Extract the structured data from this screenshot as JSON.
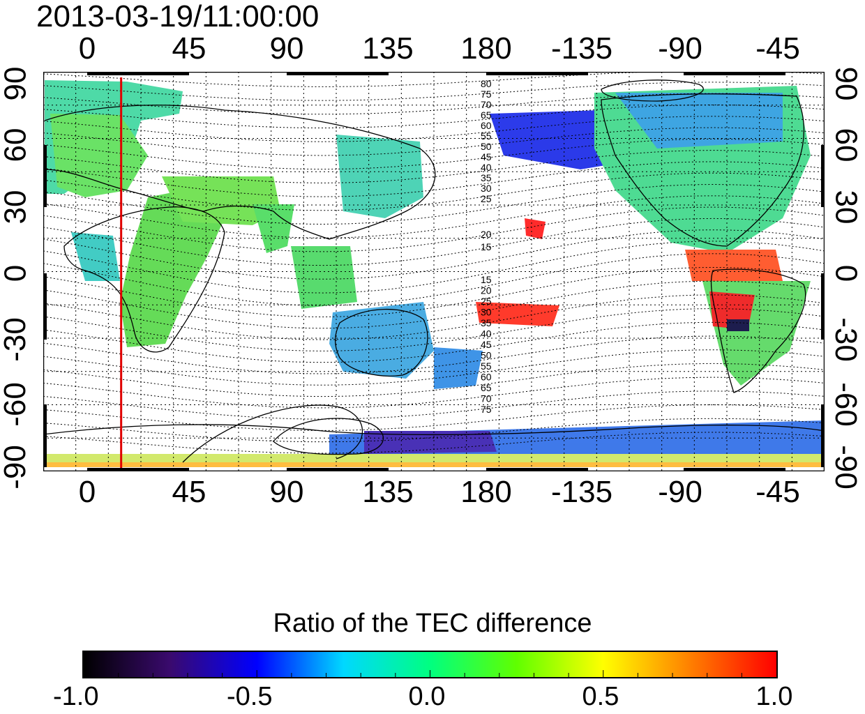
{
  "title": "2013-03-19/11:00:00",
  "x_ticks": [
    "0",
    "45",
    "90",
    "135",
    "180",
    "-135",
    "-90",
    "-45"
  ],
  "y_ticks": [
    "90",
    "60",
    "30",
    "0",
    "-30",
    "-60",
    "-90"
  ],
  "contour_labels_north": [
    "80",
    "75",
    "70",
    "65",
    "60",
    "55",
    "50",
    "45",
    "40",
    "35",
    "30",
    "25",
    "20",
    "15"
  ],
  "contour_labels_south": [
    "15",
    "20",
    "25",
    "30",
    "35",
    "40",
    "45",
    "50",
    "55",
    "60",
    "65",
    "70",
    "75"
  ],
  "terminator_longitude": 15,
  "colorbar": {
    "title": "Ratio of the TEC difference",
    "labels": [
      "-1.0",
      "-0.5",
      "0.0",
      "0.5",
      "1.0"
    ],
    "min": -1.0,
    "max": 1.0,
    "stops": [
      "#000000",
      "#3a0a6e",
      "#0000ff",
      "#00d8ff",
      "#00ff80",
      "#60ff00",
      "#ffff00",
      "#ff8000",
      "#ff0000"
    ]
  },
  "colors": {
    "terminator": "#e00000",
    "coast": "#000000",
    "grid": "#000000"
  }
}
